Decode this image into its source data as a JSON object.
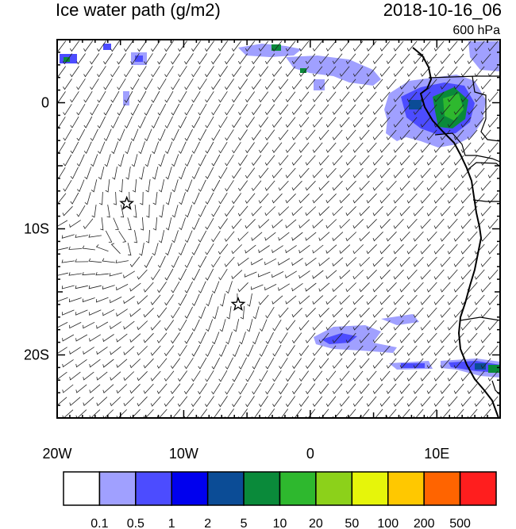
{
  "header": {
    "title": "Ice water path (g/m2)",
    "datetime": "2018-10-16_06",
    "level": "600 hPa"
  },
  "axes": {
    "lon_range": [
      -20,
      15
    ],
    "lat_range": [
      -25,
      5
    ],
    "x_ticks": [
      {
        "value": -20,
        "label": "20W"
      },
      {
        "value": -10,
        "label": "10W"
      },
      {
        "value": 0,
        "label": "0"
      },
      {
        "value": 10,
        "label": "10E"
      }
    ],
    "y_ticks": [
      {
        "value": 0,
        "label": "0"
      },
      {
        "value": -10,
        "label": "10S"
      },
      {
        "value": -20,
        "label": "20S"
      }
    ]
  },
  "markers": [
    {
      "name": "star",
      "lon": -14.5,
      "lat": -8.0
    },
    {
      "name": "star",
      "lon": -5.7,
      "lat": -16.0
    }
  ],
  "colorbar": {
    "colors": [
      "#ffffff",
      "#a0a0ff",
      "#4c4cff",
      "#0000ee",
      "#0b4c96",
      "#0a8a3a",
      "#2eb82e",
      "#8cd11a",
      "#e6f50a",
      "#ffc800",
      "#ff6400",
      "#ff1e1e"
    ],
    "labels": [
      "0.1",
      "0.5",
      "1",
      "2",
      "5",
      "10",
      "20",
      "50",
      "100",
      "200",
      "500"
    ]
  }
}
